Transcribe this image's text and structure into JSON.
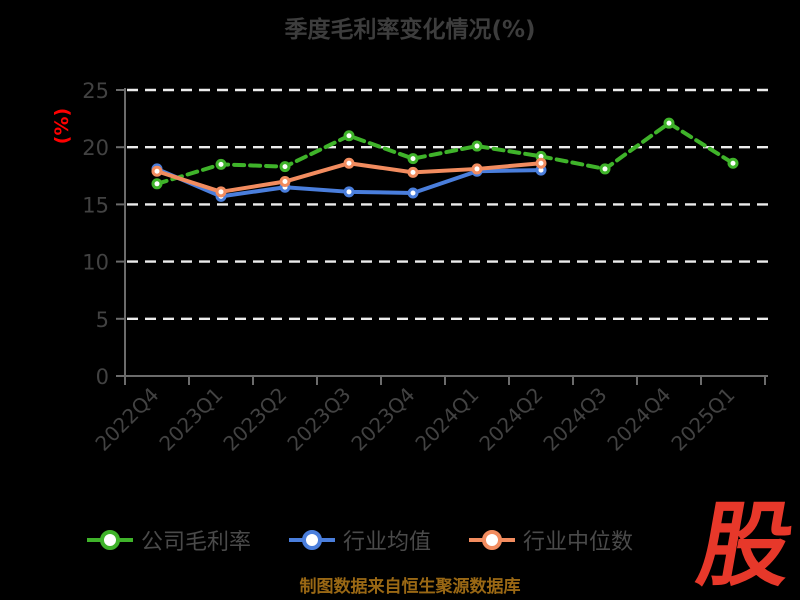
{
  "title": "季度毛利率变化情况(%)",
  "footer": "制图数据来自恒生聚源数据库",
  "watermark": "股",
  "colors": {
    "background": "#000000",
    "title_text": "#3d3d3d",
    "axis_line": "#6b6b6b",
    "tick_label": "#424242",
    "gridline": "#ececec",
    "y_label_red": "#fe0000",
    "legend_text": "#4a4a4a",
    "footer_text": "#9a6814",
    "watermark_red": "#e7382a"
  },
  "chart_data": {
    "type": "line",
    "title": "季度毛利率变化情况(%)",
    "xlabel": "",
    "ylabel": "(%)",
    "ylim": [
      0,
      25
    ],
    "yticks": [
      0,
      5,
      10,
      15,
      20,
      25
    ],
    "grid": true,
    "grid_style": "dashed",
    "legend_position": "bottom",
    "categories": [
      "2022Q4",
      "2023Q1",
      "2023Q2",
      "2023Q3",
      "2023Q4",
      "2024Q1",
      "2024Q2",
      "2024Q3",
      "2024Q4",
      "2025Q1"
    ],
    "series": [
      {
        "name": "公司毛利率",
        "color": "#3fb32a",
        "line_style": "dashed",
        "values": [
          16.8,
          18.5,
          18.3,
          21.0,
          19.0,
          20.1,
          19.2,
          18.1,
          22.1,
          18.6
        ]
      },
      {
        "name": "行业均值",
        "color": "#4a7edc",
        "line_style": "solid",
        "values": [
          18.1,
          15.7,
          16.5,
          16.1,
          16.0,
          17.9,
          18.0,
          null,
          null,
          null
        ]
      },
      {
        "name": "行业中位数",
        "color": "#f28c5f",
        "line_style": "solid",
        "values": [
          17.9,
          16.1,
          17.0,
          18.6,
          17.8,
          18.1,
          18.6,
          null,
          null,
          null
        ]
      }
    ]
  }
}
